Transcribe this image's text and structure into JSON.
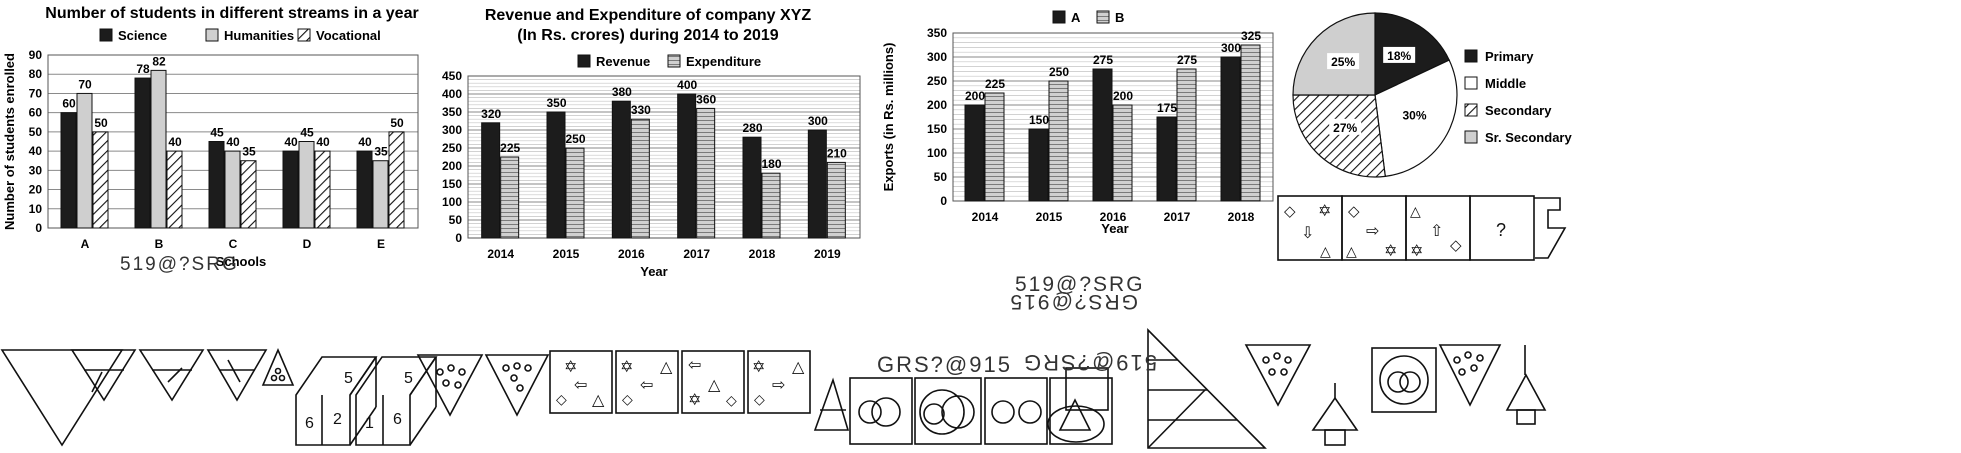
{
  "colors": {
    "dark": "#1c1c1c",
    "light": "#cfcfcf",
    "white": "#ffffff",
    "grid": "#8a8a8a"
  },
  "chart_data": [
    {
      "type": "bar",
      "title": "Number of students in different streams in a year",
      "xlabel": "Schools",
      "ylabel": "Number of students enrolled",
      "categories": [
        "A",
        "B",
        "C",
        "D",
        "E"
      ],
      "series": [
        {
          "name": "Science",
          "values": [
            60,
            78,
            45,
            40,
            40
          ]
        },
        {
          "name": "Humanities",
          "values": [
            70,
            82,
            40,
            45,
            35
          ]
        },
        {
          "name": "Vocational",
          "values": [
            50,
            40,
            35,
            40,
            50
          ]
        }
      ],
      "ylim": [
        0,
        90
      ],
      "yticks": [
        0,
        10,
        20,
        30,
        40,
        50,
        60,
        70,
        80,
        90
      ],
      "grid": true,
      "legend": "top"
    },
    {
      "type": "bar",
      "title": "Revenue and Expenditure of company XYZ",
      "subtitle": "(In Rs. crores) during 2014 to 2019",
      "xlabel": "Year",
      "ylabel": "",
      "categories": [
        "2014",
        "2015",
        "2016",
        "2017",
        "2018",
        "2019"
      ],
      "series": [
        {
          "name": "Revenue",
          "values": [
            320,
            350,
            380,
            400,
            280,
            300
          ]
        },
        {
          "name": "Expenditure",
          "values": [
            225,
            250,
            330,
            360,
            180,
            210
          ]
        }
      ],
      "ylim": [
        0,
        450
      ],
      "yticks": [
        0,
        50,
        100,
        150,
        200,
        250,
        300,
        350,
        400,
        450
      ],
      "grid": true,
      "legend": "top"
    },
    {
      "type": "bar",
      "title": "",
      "xlabel": "Year",
      "ylabel": "Exports (in Rs. millions)",
      "categories": [
        "2014",
        "2015",
        "2016",
        "2017",
        "2018"
      ],
      "series": [
        {
          "name": "A",
          "values": [
            200,
            150,
            275,
            175,
            300
          ]
        },
        {
          "name": "B",
          "values": [
            225,
            250,
            200,
            275,
            325
          ]
        }
      ],
      "ylim": [
        0,
        350
      ],
      "yticks": [
        0,
        50,
        100,
        150,
        200,
        250,
        300,
        350
      ],
      "grid": true,
      "legend": "top"
    },
    {
      "type": "pie",
      "title": "",
      "labels": [
        "Primary",
        "Middle",
        "Secondary",
        "Sr. Secondary"
      ],
      "values": [
        18,
        30,
        27,
        25
      ],
      "value_labels": [
        "18%",
        "30%",
        "27%",
        "25%"
      ],
      "legend": "right"
    }
  ],
  "puzzles": {
    "text_top": "GRS?@915",
    "text_top_mirror": "519@?SRG",
    "text_mid_left": "GRS?@915",
    "text_mid_right": "519@?SRG",
    "text_right_top": "519@?SRG",
    "question_mark": "?",
    "dice": [
      {
        "top": "5",
        "left": "6",
        "right": "2"
      },
      {
        "top": "5",
        "left": "1",
        "right": "6"
      }
    ]
  }
}
